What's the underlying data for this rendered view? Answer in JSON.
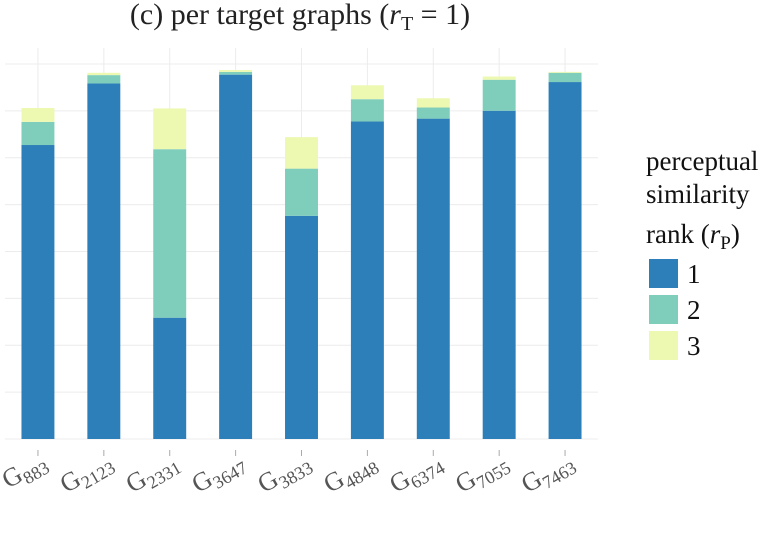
{
  "chart_data": {
    "type": "bar",
    "stacked": true,
    "title": "(c) per target graphs (r_T = 1)",
    "title_parts": {
      "prefix": "(c) per target graphs (",
      "var": "r",
      "sub": "T",
      "suffix": " = 1)"
    },
    "categories": [
      "G883",
      "G2123",
      "G2331",
      "G3647",
      "G3833",
      "G4848",
      "G6374",
      "G7055",
      "G7463"
    ],
    "category_parts": [
      {
        "main": "G",
        "sub": "883"
      },
      {
        "main": "G",
        "sub": "2123"
      },
      {
        "main": "G",
        "sub": "2331"
      },
      {
        "main": "G",
        "sub": "3647"
      },
      {
        "main": "G",
        "sub": "3833"
      },
      {
        "main": "G",
        "sub": "4848"
      },
      {
        "main": "G",
        "sub": "6374"
      },
      {
        "main": "G",
        "sub": "7055"
      },
      {
        "main": "G",
        "sub": "7463"
      }
    ],
    "series": [
      {
        "name": "1",
        "color": "#2c7fb8",
        "values": [
          0.635,
          0.768,
          0.262,
          0.787,
          0.482,
          0.686,
          0.692,
          0.709,
          0.771
        ]
      },
      {
        "name": "2",
        "color": "#7fcdbb",
        "values": [
          0.05,
          0.018,
          0.364,
          0.006,
          0.102,
          0.048,
          0.024,
          0.067,
          0.02
        ]
      },
      {
        "name": "3",
        "color": "#edf8b1",
        "values": [
          0.03,
          0.005,
          0.088,
          0.004,
          0.068,
          0.03,
          0.02,
          0.007,
          0.002
        ]
      }
    ],
    "ylim": [
      0,
      0.81
    ],
    "y_tick_count": 9,
    "grid": true,
    "legend": {
      "title_lines": [
        "perceptual",
        "similarity"
      ],
      "title_rank": {
        "prefix": "rank (",
        "var": "r",
        "sub": "P",
        "suffix": ")"
      },
      "placement": "right"
    }
  }
}
